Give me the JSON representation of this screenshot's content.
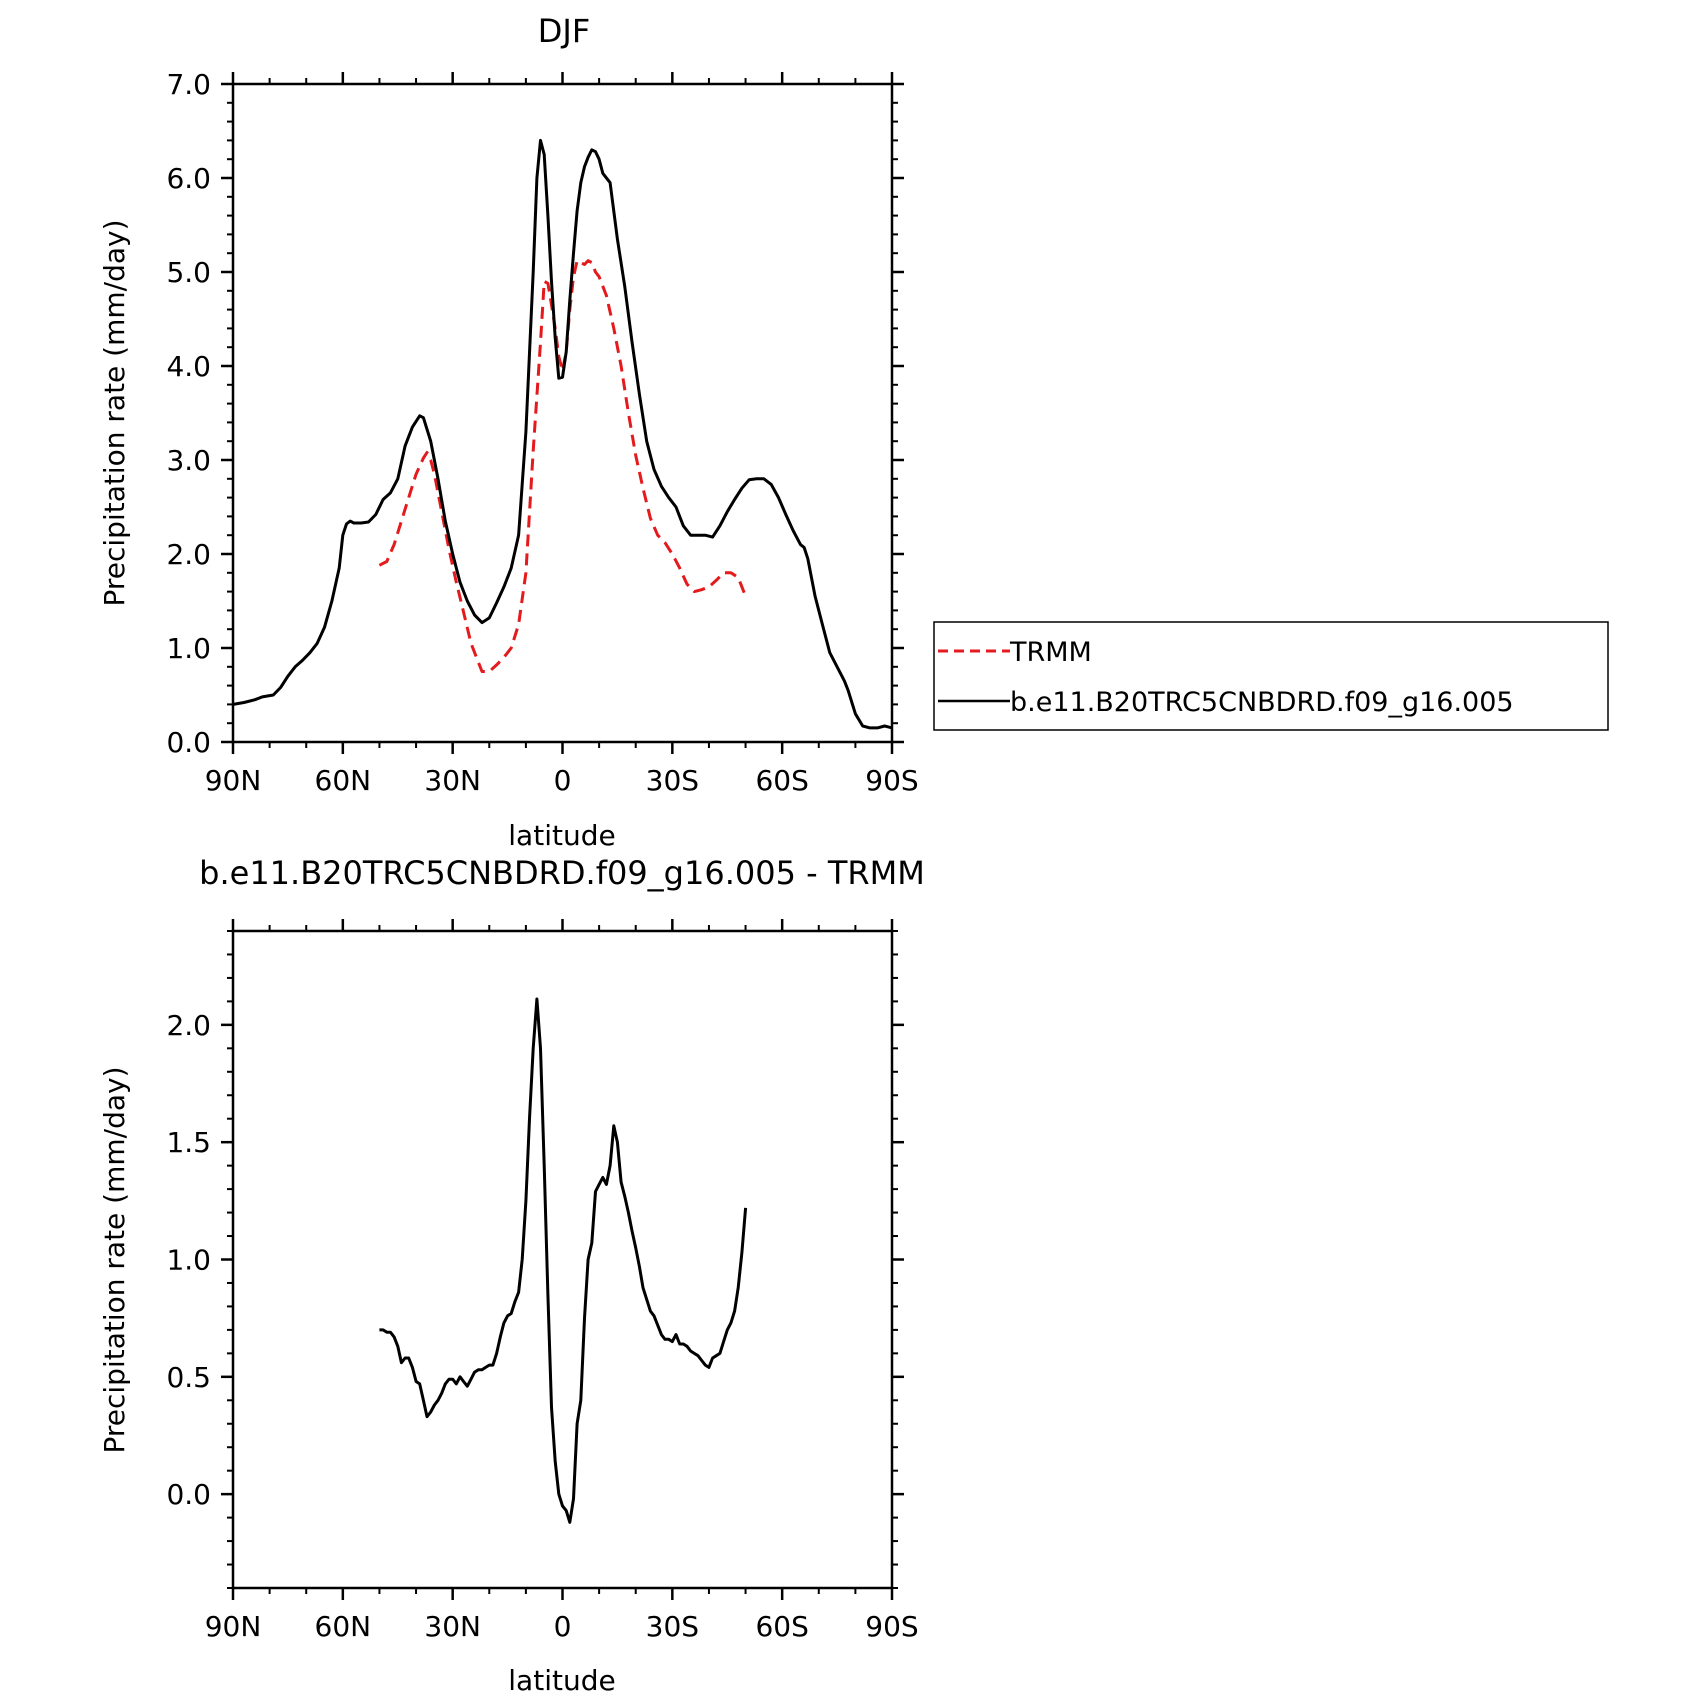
{
  "chart_data": [
    {
      "type": "line",
      "title": "DJF",
      "xlabel": "latitude",
      "ylabel": "Precipitation rate (mm/day)",
      "xlim": [
        -90,
        90
      ],
      "ylim": [
        0,
        7
      ],
      "x_ticks": [
        -90,
        -60,
        -30,
        0,
        30,
        60,
        90
      ],
      "x_tick_labels": [
        "90N",
        "60N",
        "30N",
        "0",
        "30S",
        "60S",
        "90S"
      ],
      "y_ticks": [
        0,
        1,
        2,
        3,
        4,
        5,
        6,
        7
      ],
      "y_tick_labels": [
        "0.0",
        "1.0",
        "2.0",
        "3.0",
        "4.0",
        "5.0",
        "6.0",
        "7.0"
      ],
      "grid": false,
      "legend": "right",
      "series": [
        {
          "name": "TRMM",
          "color": "#e41a1c",
          "dash": "dashed",
          "points": [
            [
              -50,
              1.88
            ],
            [
              -48,
              1.92
            ],
            [
              -46,
              2.1
            ],
            [
              -44,
              2.35
            ],
            [
              -42,
              2.6
            ],
            [
              -40,
              2.85
            ],
            [
              -38,
              3.02
            ],
            [
              -37,
              3.08
            ],
            [
              -36,
              3.0
            ],
            [
              -35,
              2.85
            ],
            [
              -33,
              2.45
            ],
            [
              -31,
              2.05
            ],
            [
              -29,
              1.7
            ],
            [
              -27,
              1.38
            ],
            [
              -25,
              1.05
            ],
            [
              -23,
              0.85
            ],
            [
              -22,
              0.75
            ],
            [
              -20,
              0.75
            ],
            [
              -18,
              0.82
            ],
            [
              -16,
              0.9
            ],
            [
              -14,
              1.0
            ],
            [
              -12,
              1.25
            ],
            [
              -10,
              1.8
            ],
            [
              -8,
              3.1
            ],
            [
              -6,
              4.25
            ],
            [
              -5,
              4.9
            ],
            [
              -4,
              4.88
            ],
            [
              -3,
              4.65
            ],
            [
              -2,
              4.4
            ],
            [
              -1,
              4.1
            ],
            [
              0,
              3.95
            ],
            [
              1,
              4.15
            ],
            [
              2,
              4.6
            ],
            [
              3,
              4.95
            ],
            [
              4,
              5.12
            ],
            [
              5,
              5.1
            ],
            [
              6,
              5.08
            ],
            [
              7,
              5.12
            ],
            [
              8,
              5.1
            ],
            [
              9,
              5.0
            ],
            [
              10,
              4.95
            ],
            [
              12,
              4.75
            ],
            [
              14,
              4.4
            ],
            [
              16,
              4.0
            ],
            [
              18,
              3.5
            ],
            [
              20,
              3.05
            ],
            [
              22,
              2.7
            ],
            [
              24,
              2.38
            ],
            [
              26,
              2.2
            ],
            [
              28,
              2.12
            ],
            [
              30,
              2.0
            ],
            [
              32,
              1.85
            ],
            [
              34,
              1.68
            ],
            [
              36,
              1.6
            ],
            [
              38,
              1.62
            ],
            [
              40,
              1.65
            ],
            [
              42,
              1.72
            ],
            [
              44,
              1.8
            ],
            [
              46,
              1.8
            ],
            [
              48,
              1.75
            ],
            [
              50,
              1.55
            ]
          ]
        },
        {
          "name": "b.e11.B20TRC5CNBDRD.f09_g16.005",
          "color": "#000000",
          "dash": "solid",
          "points": [
            [
              -90,
              0.4
            ],
            [
              -87,
              0.42
            ],
            [
              -84,
              0.45
            ],
            [
              -82,
              0.48
            ],
            [
              -79,
              0.5
            ],
            [
              -77,
              0.58
            ],
            [
              -75,
              0.7
            ],
            [
              -73,
              0.8
            ],
            [
              -71,
              0.87
            ],
            [
              -69,
              0.95
            ],
            [
              -67,
              1.05
            ],
            [
              -65,
              1.22
            ],
            [
              -63,
              1.5
            ],
            [
              -61,
              1.85
            ],
            [
              -60,
              2.2
            ],
            [
              -59,
              2.32
            ],
            [
              -58,
              2.35
            ],
            [
              -57,
              2.33
            ],
            [
              -55,
              2.33
            ],
            [
              -53,
              2.34
            ],
            [
              -51,
              2.42
            ],
            [
              -49,
              2.58
            ],
            [
              -47,
              2.65
            ],
            [
              -45,
              2.8
            ],
            [
              -43,
              3.15
            ],
            [
              -41,
              3.35
            ],
            [
              -39,
              3.47
            ],
            [
              -38,
              3.45
            ],
            [
              -36,
              3.2
            ],
            [
              -34,
              2.8
            ],
            [
              -32,
              2.35
            ],
            [
              -30,
              2.0
            ],
            [
              -28,
              1.7
            ],
            [
              -26,
              1.5
            ],
            [
              -24,
              1.35
            ],
            [
              -22,
              1.27
            ],
            [
              -20,
              1.32
            ],
            [
              -18,
              1.48
            ],
            [
              -16,
              1.65
            ],
            [
              -14,
              1.85
            ],
            [
              -12,
              2.2
            ],
            [
              -10,
              3.3
            ],
            [
              -8,
              5.0
            ],
            [
              -7,
              6.0
            ],
            [
              -6,
              6.4
            ],
            [
              -5,
              6.25
            ],
            [
              -4,
              5.6
            ],
            [
              -3,
              4.9
            ],
            [
              -2,
              4.3
            ],
            [
              -1,
              3.87
            ],
            [
              0,
              3.88
            ],
            [
              1,
              4.15
            ],
            [
              2,
              4.7
            ],
            [
              3,
              5.2
            ],
            [
              4,
              5.65
            ],
            [
              5,
              5.95
            ],
            [
              6,
              6.12
            ],
            [
              7,
              6.22
            ],
            [
              8,
              6.3
            ],
            [
              9,
              6.28
            ],
            [
              10,
              6.2
            ],
            [
              11,
              6.05
            ],
            [
              13,
              5.95
            ],
            [
              15,
              5.35
            ],
            [
              17,
              4.85
            ],
            [
              19,
              4.25
            ],
            [
              21,
              3.7
            ],
            [
              23,
              3.2
            ],
            [
              25,
              2.9
            ],
            [
              27,
              2.72
            ],
            [
              29,
              2.6
            ],
            [
              31,
              2.5
            ],
            [
              33,
              2.3
            ],
            [
              35,
              2.2
            ],
            [
              37,
              2.2
            ],
            [
              39,
              2.2
            ],
            [
              41,
              2.18
            ],
            [
              43,
              2.3
            ],
            [
              45,
              2.45
            ],
            [
              47,
              2.58
            ],
            [
              49,
              2.7
            ],
            [
              51,
              2.79
            ],
            [
              53,
              2.8
            ],
            [
              55,
              2.8
            ],
            [
              57,
              2.74
            ],
            [
              59,
              2.6
            ],
            [
              61,
              2.42
            ],
            [
              63,
              2.25
            ],
            [
              65,
              2.1
            ],
            [
              66,
              2.07
            ],
            [
              67,
              1.95
            ],
            [
              69,
              1.55
            ],
            [
              71,
              1.25
            ],
            [
              73,
              0.95
            ],
            [
              75,
              0.8
            ],
            [
              77,
              0.65
            ],
            [
              78,
              0.55
            ],
            [
              80,
              0.3
            ],
            [
              82,
              0.17
            ],
            [
              84,
              0.15
            ],
            [
              86,
              0.15
            ],
            [
              88,
              0.17
            ],
            [
              90,
              0.15
            ]
          ]
        }
      ]
    },
    {
      "type": "line",
      "title": "b.e11.B20TRC5CNBDRD.f09_g16.005 - TRMM",
      "xlabel": "latitude",
      "ylabel": "Precipitation rate (mm/day)",
      "xlim": [
        -90,
        90
      ],
      "ylim": [
        -0.4,
        2.4
      ],
      "x_ticks": [
        -90,
        -60,
        -30,
        0,
        30,
        60,
        90
      ],
      "x_tick_labels": [
        "90N",
        "60N",
        "30N",
        "0",
        "30S",
        "60S",
        "90S"
      ],
      "y_ticks": [
        0,
        0.5,
        1,
        1.5,
        2
      ],
      "y_tick_labels": [
        "0.0",
        "0.5",
        "1.0",
        "1.5",
        "2.0"
      ],
      "grid": false,
      "series": [
        {
          "color": "#000000",
          "dash": "solid",
          "points": [
            [
              -50,
              0.7
            ],
            [
              -49,
              0.7
            ],
            [
              -48,
              0.69
            ],
            [
              -47,
              0.69
            ],
            [
              -46,
              0.67
            ],
            [
              -45,
              0.63
            ],
            [
              -44,
              0.56
            ],
            [
              -43,
              0.58
            ],
            [
              -42,
              0.58
            ],
            [
              -41,
              0.54
            ],
            [
              -40,
              0.48
            ],
            [
              -39,
              0.47
            ],
            [
              -38,
              0.4
            ],
            [
              -37,
              0.33
            ],
            [
              -36,
              0.35
            ],
            [
              -35,
              0.38
            ],
            [
              -34,
              0.4
            ],
            [
              -33,
              0.43
            ],
            [
              -32,
              0.47
            ],
            [
              -31,
              0.49
            ],
            [
              -30,
              0.49
            ],
            [
              -29,
              0.47
            ],
            [
              -28,
              0.5
            ],
            [
              -27,
              0.48
            ],
            [
              -26,
              0.46
            ],
            [
              -25,
              0.49
            ],
            [
              -24,
              0.52
            ],
            [
              -23,
              0.53
            ],
            [
              -22,
              0.53
            ],
            [
              -21,
              0.54
            ],
            [
              -20,
              0.55
            ],
            [
              -19,
              0.55
            ],
            [
              -18,
              0.6
            ],
            [
              -17,
              0.67
            ],
            [
              -16,
              0.73
            ],
            [
              -15,
              0.76
            ],
            [
              -14,
              0.77
            ],
            [
              -13,
              0.82
            ],
            [
              -12,
              0.86
            ],
            [
              -11,
              1.0
            ],
            [
              -10,
              1.25
            ],
            [
              -9,
              1.6
            ],
            [
              -8,
              1.9
            ],
            [
              -7,
              2.11
            ],
            [
              -6,
              1.9
            ],
            [
              -5,
              1.4
            ],
            [
              -4,
              0.85
            ],
            [
              -3,
              0.37
            ],
            [
              -2,
              0.14
            ],
            [
              -1,
              0.0
            ],
            [
              0,
              -0.05
            ],
            [
              1,
              -0.07
            ],
            [
              2,
              -0.12
            ],
            [
              3,
              -0.02
            ],
            [
              4,
              0.3
            ],
            [
              5,
              0.4
            ],
            [
              6,
              0.75
            ],
            [
              7,
              1.0
            ],
            [
              8,
              1.07
            ],
            [
              9,
              1.29
            ],
            [
              10,
              1.32
            ],
            [
              11,
              1.35
            ],
            [
              12,
              1.32
            ],
            [
              13,
              1.4
            ],
            [
              14,
              1.57
            ],
            [
              15,
              1.5
            ],
            [
              16,
              1.33
            ],
            [
              17,
              1.27
            ],
            [
              18,
              1.2
            ],
            [
              19,
              1.12
            ],
            [
              20,
              1.05
            ],
            [
              21,
              0.97
            ],
            [
              22,
              0.88
            ],
            [
              23,
              0.83
            ],
            [
              24,
              0.78
            ],
            [
              25,
              0.76
            ],
            [
              26,
              0.72
            ],
            [
              27,
              0.68
            ],
            [
              28,
              0.66
            ],
            [
              29,
              0.66
            ],
            [
              30,
              0.65
            ],
            [
              31,
              0.68
            ],
            [
              32,
              0.64
            ],
            [
              33,
              0.64
            ],
            [
              34,
              0.63
            ],
            [
              35,
              0.61
            ],
            [
              36,
              0.6
            ],
            [
              37,
              0.59
            ],
            [
              38,
              0.57
            ],
            [
              39,
              0.55
            ],
            [
              40,
              0.54
            ],
            [
              41,
              0.58
            ],
            [
              42,
              0.59
            ],
            [
              43,
              0.6
            ],
            [
              44,
              0.65
            ],
            [
              45,
              0.7
            ],
            [
              46,
              0.73
            ],
            [
              47,
              0.78
            ],
            [
              48,
              0.88
            ],
            [
              49,
              1.03
            ],
            [
              50,
              1.22
            ]
          ]
        }
      ]
    }
  ]
}
